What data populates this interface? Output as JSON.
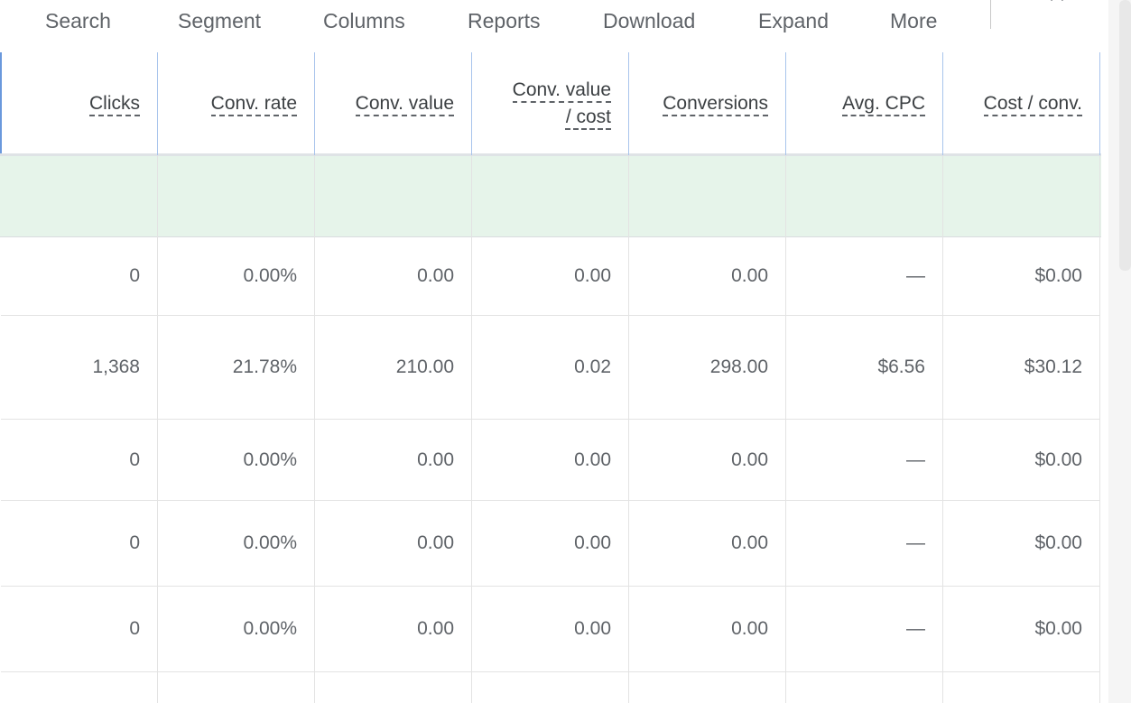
{
  "toolbar": {
    "items": [
      "Search",
      "Segment",
      "Columns",
      "Reports",
      "Download",
      "Expand",
      "More"
    ]
  },
  "table": {
    "headers": [
      "Clicks",
      "Conv. rate",
      "Conv. value",
      "Conv. value\n/ cost",
      "Conversions",
      "Avg. CPC",
      "Cost / conv."
    ],
    "rows": [
      [
        "0",
        "0.00%",
        "0.00",
        "0.00",
        "0.00",
        "—",
        "$0.00"
      ],
      [
        "1,368",
        "21.78%",
        "210.00",
        "0.02",
        "298.00",
        "$6.56",
        "$30.12"
      ],
      [
        "0",
        "0.00%",
        "0.00",
        "0.00",
        "0.00",
        "—",
        "$0.00"
      ],
      [
        "0",
        "0.00%",
        "0.00",
        "0.00",
        "0.00",
        "—",
        "$0.00"
      ],
      [
        "0",
        "0.00%",
        "0.00",
        "0.00",
        "0.00",
        "—",
        "$0.00"
      ]
    ]
  }
}
